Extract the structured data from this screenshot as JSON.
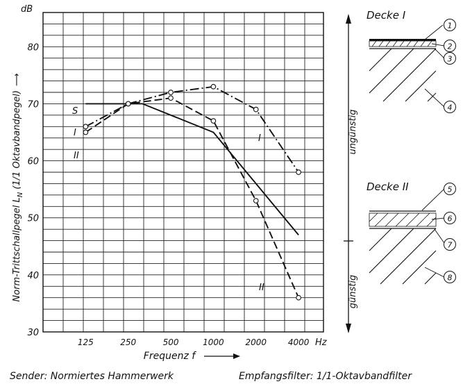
{
  "chart_data": {
    "type": "line",
    "ylabel": "Norm-Trittschallpegel L",
    "ylabel_sub": "N",
    "ylabel_suffix": " (1/1 Oktavbandpegel)",
    "yunit": "dB",
    "xlabel": "Frequenz f",
    "xunit": "Hz",
    "ylim": [
      30,
      86
    ],
    "x_ticks": [
      125,
      250,
      500,
      1000,
      2000,
      4000
    ],
    "x_tick_labels": [
      "125",
      "250",
      "500",
      "1000",
      "2000",
      "4000"
    ],
    "y_ticks": [
      30,
      40,
      50,
      60,
      70,
      80
    ],
    "y_tick_labels": [
      "30",
      "40",
      "50",
      "60",
      "70",
      "80"
    ],
    "x_scale": "log",
    "grid": true,
    "series": [
      {
        "name": "S",
        "style": "solid",
        "markers": false,
        "x": [
          125,
          315,
          1000,
          4000
        ],
        "y": [
          70,
          70,
          65,
          47
        ]
      },
      {
        "name": "I",
        "style": "dash-dot",
        "markers": true,
        "x": [
          125,
          250,
          500,
          1000,
          2000,
          4000
        ],
        "y": [
          66,
          70,
          72,
          73,
          69,
          58
        ]
      },
      {
        "name": "II",
        "style": "dashed",
        "markers": true,
        "x": [
          125,
          250,
          500,
          1000,
          2000,
          4000
        ],
        "y": [
          65,
          70,
          71,
          67,
          53,
          36
        ]
      }
    ],
    "annotations": [
      {
        "text": "S",
        "near": "left of S line start"
      },
      {
        "text": "I",
        "near": "left of curve I start"
      },
      {
        "text": "II",
        "near": "left of curve II start"
      },
      {
        "text": "I",
        "near": "curve I at 1400 Hz"
      },
      {
        "text": "II",
        "near": "curve II at 3000 Hz"
      }
    ]
  },
  "scale_arrow": {
    "top_label": "ungünstig",
    "bottom_label": "günstig"
  },
  "diagrams": [
    {
      "title": "Decke I",
      "callouts": [
        "1",
        "2",
        "3",
        "4"
      ]
    },
    {
      "title": "Decke II",
      "callouts": [
        "5",
        "6",
        "7",
        "8"
      ]
    }
  ],
  "footer": {
    "sender": "Sender: Normiertes Hammerwerk",
    "filter": "Empfangsfilter: 1/1-Oktavbandfilter"
  }
}
